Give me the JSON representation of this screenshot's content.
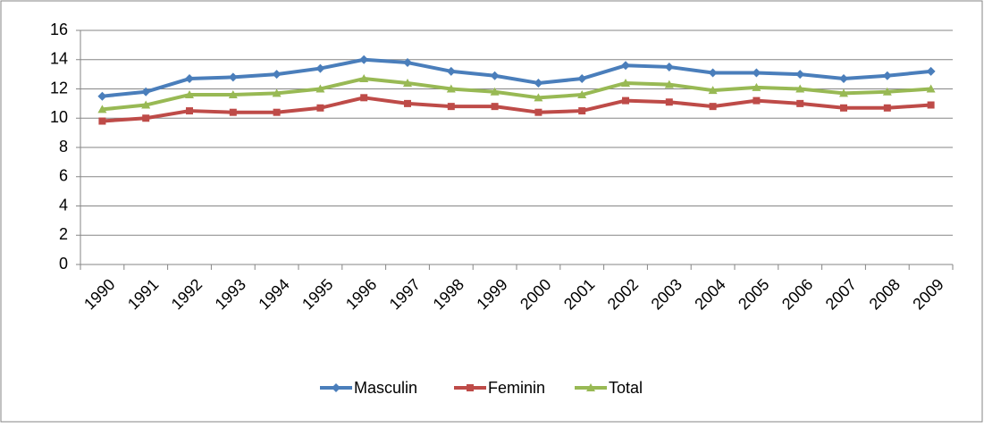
{
  "chart_data": {
    "type": "line",
    "categories": [
      "1990",
      "1991",
      "1992",
      "1993",
      "1994",
      "1995",
      "1996",
      "1997",
      "1998",
      "1999",
      "2000",
      "2001",
      "2002",
      "2003",
      "2004",
      "2005",
      "2006",
      "2007",
      "2008",
      "2009"
    ],
    "series": [
      {
        "name": "Masculin",
        "color": "#4a7ebb",
        "marker": "diamond",
        "values": [
          11.5,
          11.8,
          12.7,
          12.8,
          13.0,
          13.4,
          14.0,
          13.8,
          13.2,
          12.9,
          12.4,
          12.7,
          13.6,
          13.5,
          13.1,
          13.1,
          13.0,
          12.7,
          12.9,
          13.2
        ]
      },
      {
        "name": "Feminin",
        "color": "#be4b48",
        "marker": "square",
        "values": [
          9.8,
          10.0,
          10.5,
          10.4,
          10.4,
          10.7,
          11.4,
          11.0,
          10.8,
          10.8,
          10.4,
          10.5,
          11.2,
          11.1,
          10.8,
          11.2,
          11.0,
          10.7,
          10.7,
          10.9
        ]
      },
      {
        "name": "Total",
        "color": "#98b954",
        "marker": "triangle",
        "values": [
          10.6,
          10.9,
          11.6,
          11.6,
          11.7,
          12.0,
          12.7,
          12.4,
          12.0,
          11.8,
          11.4,
          11.6,
          12.4,
          12.3,
          11.9,
          12.1,
          12.0,
          11.7,
          11.8,
          12.0
        ]
      }
    ],
    "ylim": [
      0,
      16
    ],
    "yticks": [
      0,
      2,
      4,
      6,
      8,
      10,
      12,
      14,
      16
    ],
    "grid": true,
    "legend": "bottom"
  }
}
